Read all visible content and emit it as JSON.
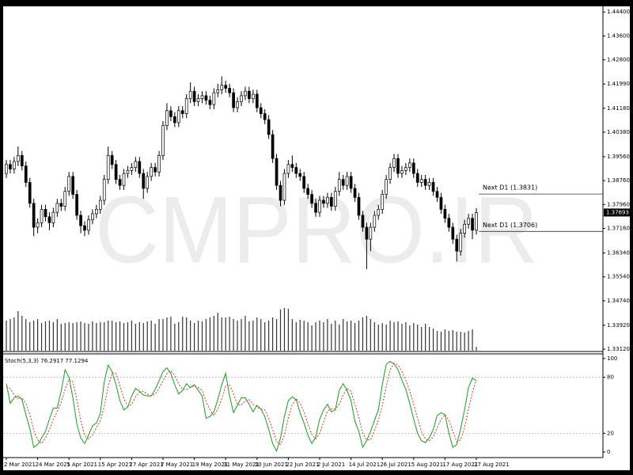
{
  "chart_data": [
    {
      "type": "candlestick",
      "watermark": "CMPRO.IR",
      "open": [
        1.39,
        1.393,
        1.3915,
        1.394,
        1.396,
        1.3925,
        1.387,
        1.38,
        1.372,
        1.3735,
        1.378,
        1.3755,
        1.3735,
        1.377,
        1.38,
        1.379,
        1.384,
        1.389,
        1.383,
        1.376,
        1.3725,
        1.371,
        1.3745,
        1.3765,
        1.378,
        1.381,
        1.388,
        1.396,
        1.393,
        1.388,
        1.386,
        1.39,
        1.391,
        1.392,
        1.394,
        1.39,
        1.385,
        1.389,
        1.392,
        1.3905,
        1.396,
        1.406,
        1.411,
        1.409,
        1.407,
        1.411,
        1.41,
        1.415,
        1.4175,
        1.414,
        1.415,
        1.416,
        1.4145,
        1.413,
        1.417,
        1.418,
        1.4195,
        1.4185,
        1.417,
        1.412,
        1.414,
        1.416,
        1.4175,
        1.415,
        1.4165,
        1.412,
        1.41,
        1.408,
        1.403,
        1.395,
        1.386,
        1.381,
        1.39,
        1.393,
        1.392,
        1.39,
        1.389,
        1.385,
        1.383,
        1.38,
        1.377,
        1.381,
        1.38,
        1.382,
        1.379,
        1.384,
        1.388,
        1.386,
        1.389,
        1.385,
        1.382,
        1.376,
        1.372,
        1.368,
        1.372,
        1.376,
        1.378,
        1.383,
        1.388,
        1.392,
        1.395,
        1.39,
        1.391,
        1.392,
        1.3935,
        1.39,
        1.387,
        1.388,
        1.386,
        1.387,
        1.384,
        1.382,
        1.378,
        1.375,
        1.372,
        1.368,
        1.364,
        1.37,
        1.373,
        1.375,
        1.371
      ],
      "high": [
        1.3945,
        1.3945,
        1.3955,
        1.399,
        1.3975,
        1.394,
        1.3885,
        1.3815,
        1.375,
        1.3795,
        1.3795,
        1.377,
        1.3785,
        1.3815,
        1.3815,
        1.3855,
        1.3905,
        1.3905,
        1.3845,
        1.3775,
        1.374,
        1.376,
        1.378,
        1.3795,
        1.3825,
        1.3895,
        1.399,
        1.3975,
        1.3945,
        1.3895,
        1.3915,
        1.3925,
        1.3935,
        1.3955,
        1.3955,
        1.3915,
        1.3905,
        1.3935,
        1.3935,
        1.3975,
        1.4075,
        1.4135,
        1.4125,
        1.4105,
        1.4125,
        1.4125,
        1.4165,
        1.4205,
        1.419,
        1.4165,
        1.4175,
        1.4175,
        1.416,
        1.4185,
        1.42,
        1.4225,
        1.421,
        1.42,
        1.4185,
        1.4155,
        1.4175,
        1.419,
        1.419,
        1.418,
        1.418,
        1.4135,
        1.4115,
        1.4095,
        1.4045,
        1.3965,
        1.3875,
        1.3915,
        1.3945,
        1.396,
        1.3935,
        1.3915,
        1.3905,
        1.3865,
        1.3845,
        1.3815,
        1.3825,
        1.3825,
        1.3835,
        1.3835,
        1.3855,
        1.3905,
        1.3895,
        1.3905,
        1.3905,
        1.3865,
        1.3835,
        1.3775,
        1.3735,
        1.3735,
        1.3775,
        1.3795,
        1.3845,
        1.3895,
        1.3935,
        1.3965,
        1.3965,
        1.3925,
        1.3935,
        1.395,
        1.395,
        1.3915,
        1.3895,
        1.3895,
        1.3885,
        1.3885,
        1.3855,
        1.3835,
        1.3795,
        1.3765,
        1.3735,
        1.3695,
        1.3715,
        1.3745,
        1.3765,
        1.3765,
        1.3784
      ],
      "low": [
        1.3885,
        1.39,
        1.39,
        1.3925,
        1.391,
        1.3855,
        1.3785,
        1.369,
        1.37,
        1.372,
        1.374,
        1.371,
        1.372,
        1.3755,
        1.3775,
        1.3775,
        1.3825,
        1.3815,
        1.3745,
        1.37,
        1.369,
        1.3695,
        1.373,
        1.375,
        1.3765,
        1.3795,
        1.3865,
        1.3915,
        1.3865,
        1.3845,
        1.3845,
        1.3885,
        1.3895,
        1.3905,
        1.3885,
        1.3815,
        1.3835,
        1.3875,
        1.389,
        1.389,
        1.3945,
        1.4045,
        1.4075,
        1.4055,
        1.4055,
        1.4085,
        1.4085,
        1.4135,
        1.4125,
        1.4125,
        1.4135,
        1.413,
        1.4115,
        1.4115,
        1.4155,
        1.4165,
        1.417,
        1.4155,
        1.4105,
        1.4105,
        1.4125,
        1.4145,
        1.4135,
        1.4135,
        1.4105,
        1.4085,
        1.4065,
        1.4015,
        1.3935,
        1.3845,
        1.379,
        1.3795,
        1.3885,
        1.3905,
        1.3885,
        1.3875,
        1.3835,
        1.3815,
        1.3785,
        1.3755,
        1.3755,
        1.3785,
        1.3785,
        1.3775,
        1.3775,
        1.3825,
        1.3845,
        1.3845,
        1.3835,
        1.3805,
        1.3745,
        1.3705,
        1.358,
        1.364,
        1.3705,
        1.3745,
        1.3765,
        1.3815,
        1.3865,
        1.3905,
        1.3885,
        1.3885,
        1.3895,
        1.3905,
        1.3885,
        1.3855,
        1.3855,
        1.3845,
        1.3845,
        1.3825,
        1.3805,
        1.3765,
        1.3735,
        1.3705,
        1.3665,
        1.3605,
        1.3625,
        1.3685,
        1.3715,
        1.368,
        1.3695
      ],
      "close": [
        1.393,
        1.3915,
        1.394,
        1.396,
        1.3925,
        1.387,
        1.38,
        1.372,
        1.3735,
        1.378,
        1.3755,
        1.3735,
        1.377,
        1.38,
        1.379,
        1.384,
        1.389,
        1.383,
        1.376,
        1.3725,
        1.371,
        1.3745,
        1.3765,
        1.378,
        1.381,
        1.388,
        1.396,
        1.393,
        1.388,
        1.386,
        1.39,
        1.391,
        1.392,
        1.394,
        1.39,
        1.385,
        1.389,
        1.392,
        1.3905,
        1.396,
        1.406,
        1.411,
        1.409,
        1.407,
        1.411,
        1.41,
        1.415,
        1.4175,
        1.414,
        1.415,
        1.416,
        1.4145,
        1.413,
        1.417,
        1.418,
        1.4195,
        1.4185,
        1.417,
        1.412,
        1.414,
        1.416,
        1.4175,
        1.415,
        1.4165,
        1.412,
        1.41,
        1.408,
        1.403,
        1.395,
        1.386,
        1.381,
        1.39,
        1.393,
        1.392,
        1.39,
        1.389,
        1.385,
        1.383,
        1.38,
        1.377,
        1.381,
        1.38,
        1.382,
        1.379,
        1.384,
        1.388,
        1.386,
        1.389,
        1.385,
        1.382,
        1.376,
        1.372,
        1.368,
        1.372,
        1.376,
        1.378,
        1.383,
        1.388,
        1.392,
        1.395,
        1.39,
        1.391,
        1.392,
        1.3935,
        1.39,
        1.387,
        1.388,
        1.386,
        1.387,
        1.384,
        1.382,
        1.378,
        1.375,
        1.372,
        1.368,
        1.364,
        1.37,
        1.373,
        1.375,
        1.371,
        1.3769
      ],
      "volume": [
        38,
        40,
        42,
        50,
        44,
        40,
        36,
        38,
        40,
        35,
        37,
        38,
        36,
        40,
        34,
        35,
        36,
        35,
        36,
        37,
        35,
        34,
        37,
        35,
        36,
        36,
        38,
        38,
        36,
        37,
        35,
        36,
        38,
        34,
        36,
        35,
        37,
        38,
        34,
        40,
        40,
        42,
        43,
        34,
        36,
        43,
        42,
        38,
        35,
        38,
        37,
        40,
        42,
        44,
        48,
        42,
        42,
        43,
        40,
        38,
        40,
        44,
        37,
        38,
        42,
        40,
        36,
        38,
        42,
        40,
        52,
        54,
        53,
        40,
        36,
        39,
        38,
        36,
        32,
        36,
        38,
        36,
        40,
        34,
        38,
        33,
        40,
        37,
        38,
        35,
        38,
        42,
        44,
        40,
        36,
        33,
        35,
        33,
        38,
        36,
        37,
        34,
        36,
        32,
        35,
        33,
        30,
        34,
        30,
        28,
        25,
        24,
        27,
        25,
        26,
        24,
        24,
        23,
        25,
        27,
        5
      ],
      "ylim": [
        1.3307,
        1.4459
      ],
      "yticks": [
        {
          "value": 1.444,
          "label": "1.44400"
        },
        {
          "value": 1.436,
          "label": "1.43600"
        },
        {
          "value": 1.428,
          "label": "1.42800"
        },
        {
          "value": 1.4199,
          "label": "1.41990"
        },
        {
          "value": 1.4118,
          "label": "1.41180"
        },
        {
          "value": 1.4038,
          "label": "1.40380"
        },
        {
          "value": 1.3956,
          "label": "1.39560"
        },
        {
          "value": 1.3876,
          "label": "1.38760"
        },
        {
          "value": 1.3796,
          "label": "1.37960"
        },
        {
          "value": 1.3716,
          "label": "1.37160"
        },
        {
          "value": 1.3634,
          "label": "1.36340"
        },
        {
          "value": 1.3554,
          "label": "1.35540"
        },
        {
          "value": 1.3474,
          "label": "1.34740"
        },
        {
          "value": 1.3392,
          "label": "1.33920"
        },
        {
          "value": 1.3312,
          "label": "1.33120"
        }
      ],
      "levels": [
        {
          "value": 1.3831,
          "label": "Next D1 (1.3831)"
        },
        {
          "value": 1.3706,
          "label": "Next D1 (1.3706)"
        }
      ],
      "last_price": {
        "value": 1.37693,
        "label": "1.37693"
      }
    },
    {
      "type": "line",
      "title": "Stoch(5,3,3) 76.2917 77.1294",
      "series": [
        {
          "color": "#1e9a1e",
          "values": [
            73,
            52,
            58,
            60,
            56,
            40,
            25,
            5,
            8,
            15,
            22,
            35,
            47,
            47,
            65,
            88,
            80,
            58,
            30,
            15,
            9,
            18,
            28,
            31,
            41,
            75,
            93,
            86,
            72,
            55,
            45,
            48,
            60,
            68,
            65,
            61,
            60,
            60,
            67,
            76,
            86,
            90,
            84,
            72,
            62,
            66,
            73,
            69,
            72,
            66,
            60,
            36,
            38,
            43,
            56,
            72,
            84,
            60,
            42,
            50,
            58,
            58,
            51,
            43,
            50,
            46,
            38,
            24,
            9,
            1,
            15,
            38,
            55,
            59,
            56,
            42,
            31,
            18,
            9,
            16,
            35,
            45,
            51,
            43,
            45,
            66,
            73,
            66,
            55,
            33,
            22,
            5,
            12,
            22,
            34,
            45,
            72,
            94,
            97,
            94,
            88,
            77,
            67,
            52,
            35,
            20,
            12,
            10,
            15,
            24,
            39,
            42,
            40,
            20,
            5,
            8,
            25,
            45,
            69,
            79,
            76.2917
          ]
        },
        {
          "color": "#e03030",
          "dash": true,
          "values": [
            70,
            68,
            61,
            57,
            58,
            52,
            40,
            23,
            13,
            9,
            15,
            24,
            35,
            43,
            53,
            67,
            78,
            75,
            56,
            34,
            18,
            14,
            18,
            26,
            33,
            49,
            70,
            85,
            84,
            71,
            57,
            49,
            51,
            59,
            64,
            65,
            62,
            60,
            62,
            68,
            76,
            84,
            87,
            82,
            73,
            67,
            67,
            69,
            71,
            69,
            66,
            54,
            45,
            39,
            46,
            57,
            71,
            72,
            62,
            51,
            50,
            55,
            56,
            51,
            48,
            46,
            45,
            36,
            24,
            11,
            8,
            18,
            36,
            51,
            57,
            52,
            43,
            30,
            19,
            14,
            20,
            32,
            44,
            46,
            46,
            51,
            61,
            68,
            65,
            51,
            37,
            20,
            13,
            13,
            23,
            34,
            50,
            70,
            88,
            95,
            93,
            86,
            77,
            65,
            51,
            36,
            22,
            14,
            12,
            16,
            26,
            35,
            40,
            34,
            22,
            11,
            13,
            26,
            46,
            64,
            77.1294
          ]
        }
      ],
      "ylim": [
        -6,
        105
      ],
      "yticks": [
        100,
        80,
        20,
        0
      ],
      "levels": [
        80,
        20
      ],
      "xticks": [
        {
          "value": 0,
          "label": "2 Mar 2021"
        },
        {
          "value": 8,
          "label": "24 Mar 2021"
        },
        {
          "value": 16,
          "label": "5 Apr 2021"
        },
        {
          "value": 24,
          "label": "15 Apr 2021"
        },
        {
          "value": 32,
          "label": "27 Apr 2021"
        },
        {
          "value": 40,
          "label": "7 May 2021"
        },
        {
          "value": 48,
          "label": "19 May 2021"
        },
        {
          "value": 56,
          "label": "31 May 2021"
        },
        {
          "value": 64,
          "label": "10 Jun 2021"
        },
        {
          "value": 72,
          "label": "22 Jun 2021"
        },
        {
          "value": 80,
          "label": "2 Jul 2021"
        },
        {
          "value": 88,
          "label": "14 Jul 2021"
        },
        {
          "value": 96,
          "label": "26 Jul 2021"
        },
        {
          "value": 104,
          "label": "5 Aug 2021"
        },
        {
          "value": 112,
          "label": "17 Aug 2021"
        },
        {
          "value": 120,
          "label": "27 Aug 2021"
        }
      ]
    }
  ]
}
